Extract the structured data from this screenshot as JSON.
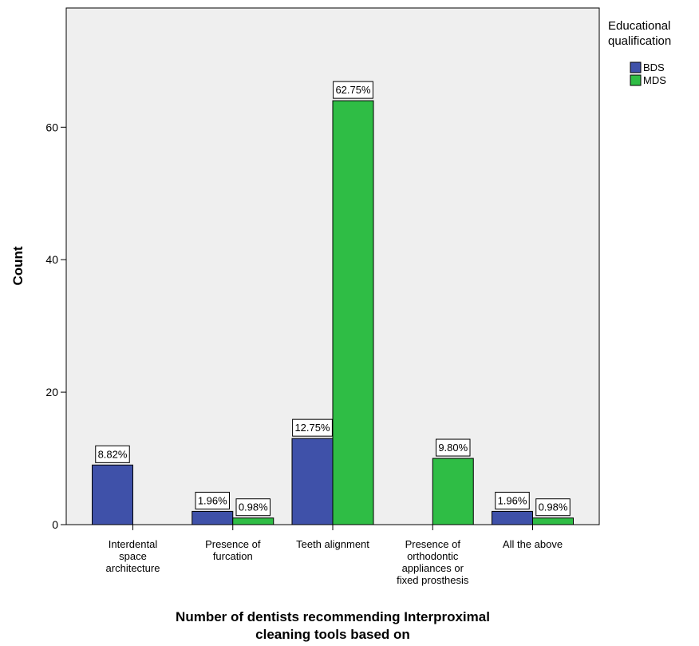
{
  "chart_data": {
    "type": "bar",
    "categories": [
      [
        "Interdental",
        "space",
        "architecture"
      ],
      [
        "Presence of",
        "furcation"
      ],
      [
        "Teeth alignment"
      ],
      [
        "Presence of",
        "orthodontic",
        "appliances or",
        "fixed prosthesis"
      ],
      [
        "All the above"
      ]
    ],
    "series": [
      {
        "name": "BDS",
        "color": "#3f51a9",
        "values": [
          9,
          2,
          13,
          0,
          2
        ],
        "labels": [
          "8.82%",
          "1.96%",
          "12.75%",
          null,
          "1.96%"
        ]
      },
      {
        "name": "MDS",
        "color": "#2fbd45",
        "values": [
          0,
          1,
          64,
          10,
          1
        ],
        "labels": [
          null,
          "0.98%",
          "62.75%",
          "9.80%",
          "0.98%"
        ]
      }
    ],
    "xlabel": [
      "Number of dentists recommending Interproximal",
      "cleaning tools based on"
    ],
    "ylabel": "Count",
    "ylim": [
      0,
      78
    ],
    "yticks": [
      0,
      20,
      40,
      60
    ],
    "legend_title": [
      "Educational",
      "qualification"
    ],
    "legend_position": "top-right",
    "plot_background": "#efefef",
    "grid": false
  }
}
